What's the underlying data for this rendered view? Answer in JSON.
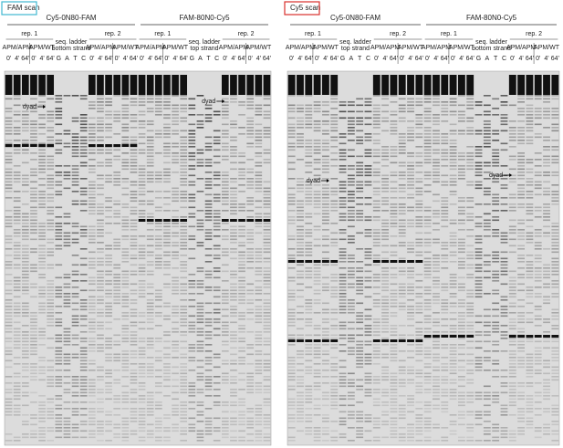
{
  "panels": [
    {
      "scan_label": "FAM scan",
      "border": "#3fb8d0",
      "constructs": [
        {
          "name": "Cy5-0N80-FAM",
          "rep1": "rep. 1",
          "rep2": "rep. 2",
          "ladder": [
            "seq. ladder",
            "bottom strand"
          ],
          "groups": [
            "APM/APM",
            "APM/WT",
            "APM/APM",
            "APM/WT"
          ],
          "lanes": [
            "0'",
            "4'",
            "64'",
            "0'",
            "4'",
            "64'",
            "G",
            "A",
            "T",
            "C",
            "0'",
            "4'",
            "64'",
            "0'",
            "4'",
            "64'"
          ],
          "dyad": "dyad"
        },
        {
          "name": "FAM-80N0-Cy5",
          "rep1": "rep. 1",
          "rep2": "rep. 2",
          "ladder": [
            "seq. ladder",
            "top strand"
          ],
          "groups": [
            "APM/APM",
            "APM/WT",
            "APM/APM",
            "APM/WT"
          ],
          "lanes": [
            "0'",
            "4'",
            "64'",
            "0'",
            "4'",
            "64'",
            "G",
            "A",
            "T",
            "C",
            "0'",
            "4'",
            "64'",
            "0'",
            "4'",
            "64'"
          ],
          "dyad": "dyad"
        }
      ]
    },
    {
      "scan_label": "Cy5 scan",
      "border": "#d9302c",
      "constructs": [
        {
          "name": "Cy5-0N80-FAM",
          "rep1": "rep. 1",
          "rep2": "rep. 2",
          "ladder": [
            "seq. ladder",
            "top strand"
          ],
          "groups": [
            "APM/APM",
            "APM/WT",
            "APM/APM",
            "APM/WT"
          ],
          "lanes": [
            "0'",
            "4'",
            "64'",
            "0'",
            "4'",
            "64'",
            "G",
            "A",
            "T",
            "C",
            "0'",
            "4'",
            "64'",
            "0'",
            "4'",
            "64'"
          ],
          "dyad": "dyad"
        },
        {
          "name": "FAM-80N0-Cy5",
          "rep1": "rep. 1",
          "rep2": "rep. 2",
          "ladder": [
            "seq. ladder",
            "bottom strand"
          ],
          "groups": [
            "APM/APM",
            "APM/WT",
            "APM/APM",
            "APM/WT"
          ],
          "lanes": [
            "0'",
            "4'",
            "64'",
            "0'",
            "4'",
            "64'",
            "G",
            "A",
            "T",
            "C",
            "0'",
            "4'",
            "64'",
            "0'",
            "4'",
            "64'"
          ],
          "dyad": "dyad"
        }
      ]
    }
  ]
}
